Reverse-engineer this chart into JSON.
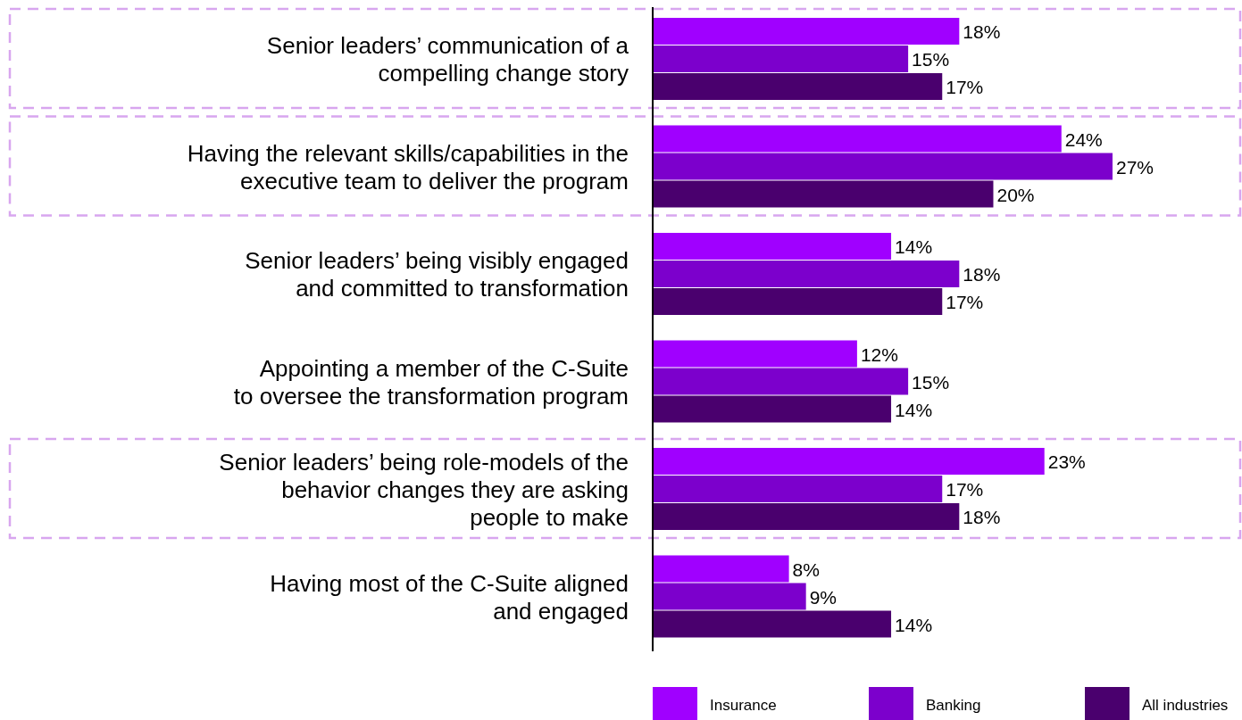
{
  "chart_data": {
    "type": "bar",
    "orientation": "horizontal",
    "categories": [
      "Senior leaders’ communication of a\ncompelling change story",
      "Having the relevant skills/capabilities in the\nexecutive team to deliver the program",
      "Senior leaders’ being visibly engaged\nand committed to transformation",
      "Appointing a member of the C-Suite\nto oversee the transformation program",
      "Senior leaders’ being role-models of the\nbehavior changes they are asking\npeople to make",
      "Having most of the C-Suite aligned\nand engaged"
    ],
    "series": [
      {
        "name": "Insurance",
        "color": "#a000ff",
        "values": [
          18,
          24,
          14,
          12,
          23,
          8
        ],
        "value_labels": [
          "18%",
          "24%",
          "14%",
          "12%",
          "23%",
          "8%"
        ]
      },
      {
        "name": "Banking",
        "color": "#7c00cc",
        "values": [
          15,
          27,
          18,
          15,
          17,
          9
        ],
        "value_labels": [
          "15%",
          "27%",
          "18%",
          "15%",
          "17%",
          "9%"
        ]
      },
      {
        "name": "All industries",
        "color": "#4a006e",
        "values": [
          17,
          20,
          17,
          14,
          18,
          14
        ],
        "value_labels": [
          "17%",
          "20%",
          "17%",
          "14%",
          "18%",
          "14%"
        ]
      }
    ],
    "legend": "bottom right"
  }
}
